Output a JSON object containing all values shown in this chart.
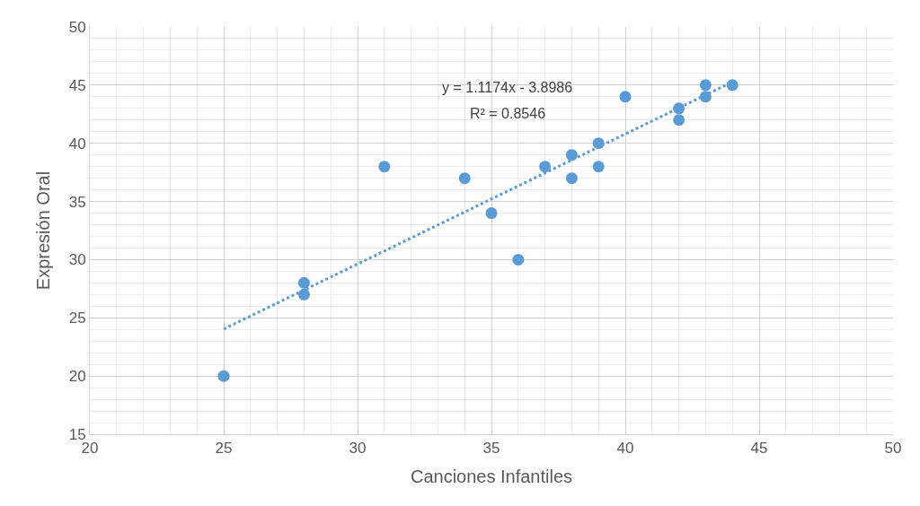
{
  "chart_data": {
    "type": "scatter",
    "xlabel": "Canciones Infantiles",
    "ylabel": "Expresión Oral",
    "annotations": [
      "y = 1.1174x - 3.8986",
      "R² = 0.8546"
    ],
    "series": [
      {
        "color": "#5b9bd5",
        "marker": "circle",
        "x": [
          25,
          28,
          28,
          31,
          34,
          35,
          36,
          37,
          38,
          38,
          39,
          39,
          40,
          42,
          42,
          43,
          43,
          44
        ],
        "values": [
          20,
          28,
          27,
          38,
          37,
          34,
          30,
          38,
          39,
          37,
          40,
          38,
          44,
          43,
          42,
          45,
          44,
          45
        ]
      },
      {
        "type": "line",
        "color": "#5b9bd5",
        "line_style": "dotted",
        "x": [
          25,
          44
        ],
        "values": [
          24.04,
          45.27
        ]
      }
    ],
    "xlim": [
      20,
      50
    ],
    "xticks": [
      20,
      25,
      30,
      35,
      40,
      45,
      50
    ],
    "ylim": [
      15,
      50
    ],
    "yticks": [
      15,
      20,
      25,
      30,
      35,
      40,
      45,
      50
    ],
    "grid": true
  }
}
